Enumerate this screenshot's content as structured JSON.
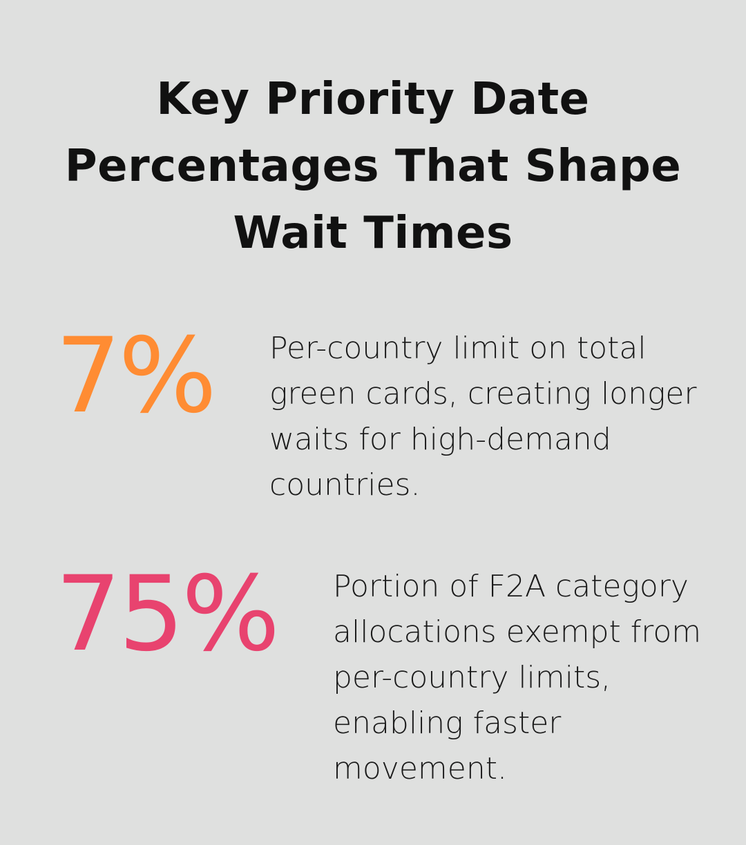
{
  "title": "Key Priority Date Percentages That Shape Wait Times",
  "colors": {
    "background": "#dfe0df",
    "stat_1": "#ff8c33",
    "stat_2": "#e8436f"
  },
  "stats": [
    {
      "value": "7%",
      "description": "Per-country limit on total green cards, creating longer waits for high-demand countries."
    },
    {
      "value": "75%",
      "description": "Portion of F2A category allocations exempt from per-country limits, enabling faster movement."
    }
  ]
}
